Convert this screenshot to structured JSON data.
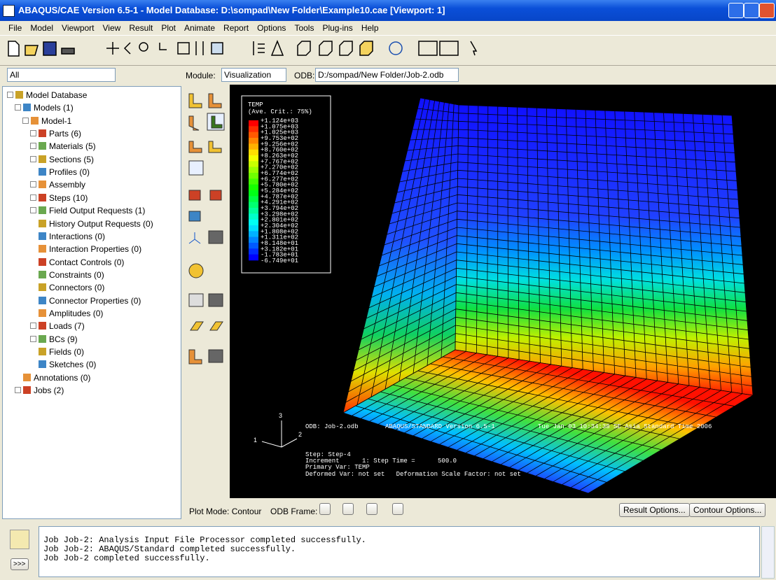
{
  "window": {
    "title": "ABAQUS/CAE Version 6.5-1 - Model Database: D:\\sompad\\New Folder\\Example10.cae [Viewport: 1]"
  },
  "menu": [
    "File",
    "Model",
    "Viewport",
    "View",
    "Result",
    "Plot",
    "Animate",
    "Report",
    "Options",
    "Tools",
    "Plug-ins",
    "Help"
  ],
  "context": {
    "filter": "All",
    "module_label": "Module:",
    "module": "Visualization",
    "odb_label": "ODB:",
    "odb": "D:/sompad/New Folder/Job-2.odb"
  },
  "tree": [
    {
      "label": "Model Database",
      "depth": 0,
      "expandable": true
    },
    {
      "label": "Models (1)",
      "depth": 1,
      "expandable": true
    },
    {
      "label": "Model-1",
      "depth": 2,
      "expandable": true
    },
    {
      "label": "Parts (6)",
      "depth": 3,
      "expandable": true
    },
    {
      "label": "Materials (5)",
      "depth": 3,
      "expandable": true
    },
    {
      "label": "Sections (5)",
      "depth": 3,
      "expandable": true
    },
    {
      "label": "Profiles (0)",
      "depth": 3,
      "expandable": false
    },
    {
      "label": "Assembly",
      "depth": 3,
      "expandable": true
    },
    {
      "label": "Steps (10)",
      "depth": 3,
      "expandable": true
    },
    {
      "label": "Field Output Requests (1)",
      "depth": 3,
      "expandable": true
    },
    {
      "label": "History Output Requests (0)",
      "depth": 3,
      "expandable": false
    },
    {
      "label": "Interactions (0)",
      "depth": 3,
      "expandable": false
    },
    {
      "label": "Interaction Properties (0)",
      "depth": 3,
      "expandable": false
    },
    {
      "label": "Contact Controls (0)",
      "depth": 3,
      "expandable": false
    },
    {
      "label": "Constraints (0)",
      "depth": 3,
      "expandable": false
    },
    {
      "label": "Connectors (0)",
      "depth": 3,
      "expandable": false
    },
    {
      "label": "Connector Properties (0)",
      "depth": 3,
      "expandable": false
    },
    {
      "label": "Amplitudes (0)",
      "depth": 3,
      "expandable": false
    },
    {
      "label": "Loads (7)",
      "depth": 3,
      "expandable": true
    },
    {
      "label": "BCs (9)",
      "depth": 3,
      "expandable": true
    },
    {
      "label": "Fields (0)",
      "depth": 3,
      "expandable": false
    },
    {
      "label": "Sketches (0)",
      "depth": 3,
      "expandable": false
    },
    {
      "label": "Annotations (0)",
      "depth": 1,
      "expandable": false
    },
    {
      "label": "Jobs (2)",
      "depth": 1,
      "expandable": true
    }
  ],
  "viewport": {
    "legend": {
      "title": "TEMP",
      "subtitle": "(Ave. Crit.: 75%)",
      "values": [
        "+1.124e+03",
        "+1.075e+03",
        "+1.025e+03",
        "+9.753e+02",
        "+9.256e+02",
        "+8.760e+02",
        "+8.263e+02",
        "+7.767e+02",
        "+7.270e+02",
        "+6.774e+02",
        "+6.277e+02",
        "+5.780e+02",
        "+5.284e+02",
        "+4.787e+02",
        "+4.291e+02",
        "+3.794e+02",
        "+3.298e+02",
        "+2.801e+02",
        "+2.304e+02",
        "+1.808e+02",
        "+1.311e+02",
        "+8.148e+01",
        "+3.182e+01",
        "-1.783e+01",
        "-6.749e+01"
      ]
    },
    "info": {
      "odb": "ODB: Job-2.odb",
      "version": "ABAQUS/STANDARD Version 6.5-1",
      "date": "Tue Jan 03 10:34:38 SE Asia Standard Time 2006",
      "step": "Step: Step-4",
      "increment": "Increment      1: Step Time =      500.0",
      "primary": "Primary Var: TEMP",
      "deformed": "Deformed Var: not set   Deformation Scale Factor: not set"
    },
    "triad": [
      "1",
      "2",
      "3"
    ]
  },
  "controls": {
    "plot_mode": "Plot Mode: Contour",
    "frame_label": "ODB Frame:",
    "buttons": [
      "Result Options...",
      "Contour Options..."
    ]
  },
  "messages": [
    "Job Job-2: Analysis Input File Processor completed successfully.",
    "Job Job-2: ABAQUS/Standard completed successfully.",
    "Job Job-2 completed successfully."
  ],
  "prompt_button": ">>>"
}
